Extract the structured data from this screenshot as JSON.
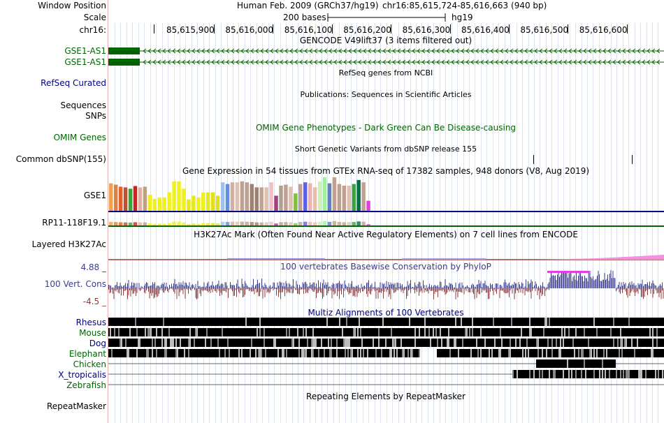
{
  "header": {
    "window_position_label": "Window Position",
    "scale_label": "Scale",
    "chr_label": "chr16:",
    "assembly": "Human Feb. 2009 (GRCh37/hg19)",
    "position": "chr16:85,615,724-85,616,663 (940 bp)",
    "scale_text": "200 bases",
    "scale_db": "hg19",
    "ruler_ticks": [
      "85,615,900",
      "85,616,000",
      "85,616,100",
      "85,616,200",
      "85,616,300",
      "85,616,400",
      "85,616,500",
      "85,616,600"
    ]
  },
  "tracks": {
    "gencode": {
      "title": "GENCODE V49lift37 (3 items filtered out)",
      "items": [
        "GSE1-AS1",
        "GSE1-AS1"
      ],
      "color": "#006400"
    },
    "refseq": {
      "title": "RefSeq genes from NCBI",
      "label": "RefSeq Curated",
      "color": "#000080"
    },
    "publications": {
      "title": "Publications: Sequences in Scientific Articles",
      "label1": "Sequences",
      "label2": "SNPs"
    },
    "omim": {
      "title": "OMIM Gene Phenotypes - Dark Green Can Be Disease-causing",
      "label": "OMIM Genes",
      "color": "#006400"
    },
    "dbsnp": {
      "title": "Short Genetic Variants from dbSNP release 155",
      "label": "Common dbSNP(155)"
    },
    "gtex": {
      "title": "Gene Expression in 54 tissues from GTEx RNA-seq of 17382 samples, 948 donors (V8, Aug 2019)",
      "gene1": "GSE1",
      "gene2": "RP11-118F19.1",
      "bar_values": [
        0.82,
        0.78,
        0.72,
        0.7,
        0.66,
        0.74,
        0.7,
        0.72,
        0.48,
        0.36,
        0.4,
        0.4,
        0.55,
        0.88,
        0.88,
        0.66,
        0.34,
        0.45,
        0.4,
        0.55,
        0.55,
        0.55,
        0.45,
        0.85,
        0.8,
        0.85,
        0.85,
        0.88,
        0.85,
        0.8,
        0.7,
        0.7,
        0.7,
        0.85,
        0.45,
        0.75,
        0.78,
        0.72,
        0.52,
        0.8,
        0.85,
        0.82,
        0.7,
        0.88,
        1.0,
        0.82,
        1.0,
        0.8,
        0.75,
        0.75,
        0.8,
        0.92,
        0.85,
        0.3
      ],
      "bar_colors": [
        "#f0a050",
        "#e08040",
        "#e06030",
        "#c05030",
        "#40a040",
        "#d02020",
        "#e0b0a0",
        "#c0a080",
        "#f0f020",
        "#f0f020",
        "#f0f020",
        "#f0f020",
        "#f0f020",
        "#f0f020",
        "#f0f020",
        "#f0f020",
        "#e8e820",
        "#e8e820",
        "#f0f020",
        "#f0f020",
        "#e8e820",
        "#e0e020",
        "#e0e020",
        "#a0c0f0",
        "#6090e0",
        "#d0b0a0",
        "#e0c0b0",
        "#c0a090",
        "#c0a090",
        "#a08070",
        "#a08070",
        "#c0a090",
        "#e0c0b0",
        "#f0c0c0",
        "#a04080",
        "#b0a090",
        "#c0a090",
        "#e0c0b0",
        "#80c040",
        "#c0a090",
        "#6060e0",
        "#f0b0b0",
        "#e0c0b0",
        "#d0f0b0",
        "#a0f0a0",
        "#6080c0",
        "#c0a090",
        "#c0a090",
        "#c0a090",
        "#e0c0b0",
        "#40a040",
        "#007040",
        "#c0a090",
        "#e040e0"
      ]
    },
    "h3k27ac": {
      "title": "H3K27Ac Mark (Often Found Near Active Regulatory Elements) on 7 cell lines from ENCODE",
      "label": "Layered H3K27Ac"
    },
    "conservation": {
      "title": "100 vertebrates Basewise Conservation by PhyloP",
      "label": "100 Vert. Cons",
      "max_label": "4.88 _",
      "min_label": "-4.5 _",
      "pos_color": "#3c3c8c",
      "neg_color": "#8c3c3c"
    },
    "multiz": {
      "title": "Multiz Alignments of 100 Vertebrates",
      "species": [
        "Rhesus",
        "Mouse",
        "Dog",
        "Elephant",
        "Chicken",
        "X_tropicalis",
        "Zebrafish"
      ],
      "colors": [
        "#000080",
        "#006400",
        "#000080",
        "#006400",
        "#006400",
        "#000080",
        "#006400"
      ]
    },
    "repeatmasker": {
      "title": "Repeating Elements by RepeatMasker",
      "label": "RepeatMasker"
    }
  }
}
